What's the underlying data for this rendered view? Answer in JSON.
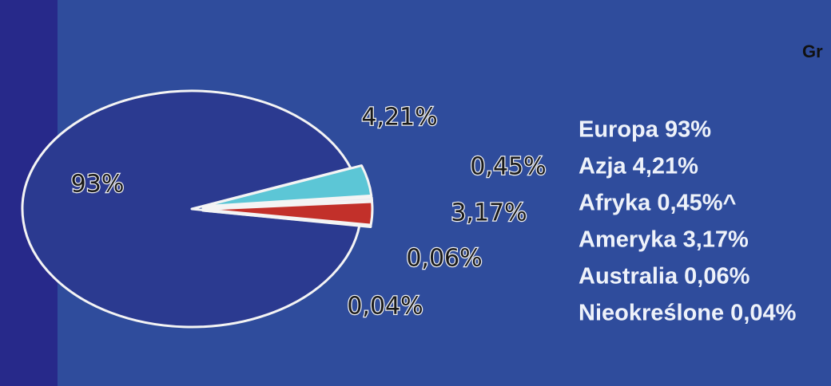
{
  "chart_data": {
    "type": "pie",
    "title": "Gr",
    "categories": [
      "Europa 93%",
      "Azja 4,21%",
      "Afryka 0,45%^",
      "Ameryka 3,17%",
      "Australia 0,06%",
      "Nieokreślone 0,04%"
    ],
    "values": [
      93,
      4.21,
      0.45,
      3.17,
      0.06,
      0.04
    ],
    "value_labels": [
      "93%",
      "4,21%",
      "0,45%",
      "3,17%",
      "0,06%",
      "0,04%"
    ],
    "colors": [
      "#2b3a90",
      "#5cc6d6",
      "#e8e8f0",
      "#c2302a",
      "#d0d0e0",
      "#b0b0c8"
    ]
  }
}
